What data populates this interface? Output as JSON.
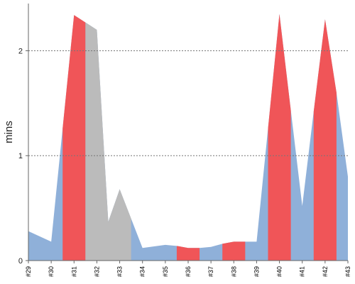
{
  "chart_data": {
    "type": "area",
    "ylabel": "mins",
    "xlabel": "",
    "ylim": [
      0,
      2.45
    ],
    "yticks": [
      "0",
      "1",
      "2"
    ],
    "ytick_values": [
      0,
      1,
      2
    ],
    "gridlines": [
      1,
      2
    ],
    "grid": "horizontal dashed",
    "categories": [
      "#29",
      "#30",
      "#31",
      "#32",
      "#33",
      "#34",
      "#35",
      "#36",
      "#37",
      "#38",
      "#39",
      "#40",
      "#41",
      "#42",
      "#43"
    ],
    "values": [
      0.28,
      0.18,
      2.34,
      2.2,
      0.68,
      0.12,
      0.15,
      0.12,
      0.13,
      0.18,
      0.18,
      2.35,
      0.52,
      2.3,
      0.8
    ],
    "extra_points": [
      {
        "x": 1.5,
        "y": 1.26
      },
      {
        "x": 2.5,
        "y": 2.27
      },
      {
        "x": 3.5,
        "y": 0.37
      },
      {
        "x": 6.5,
        "y": 0.14
      },
      {
        "x": 7.5,
        "y": 0.12
      },
      {
        "x": 8.5,
        "y": 0.16
      },
      {
        "x": 9.5,
        "y": 0.18
      },
      {
        "x": 10.5,
        "y": 1.26
      },
      {
        "x": 11.5,
        "y": 1.43
      },
      {
        "x": 12.5,
        "y": 1.42
      },
      {
        "x": 13.5,
        "y": 1.6
      }
    ],
    "highlight_bands": [
      {
        "from": 1.5,
        "to": 2.5,
        "color": "#f05558"
      },
      {
        "from": 2.5,
        "to": 4.5,
        "color": "#bbbbbb"
      },
      {
        "from": 6.5,
        "to": 7.5,
        "color": "#f05558"
      },
      {
        "from": 8.5,
        "to": 9.5,
        "color": "#f05558"
      },
      {
        "from": 10.5,
        "to": 11.5,
        "color": "#f05558"
      },
      {
        "from": 12.5,
        "to": 13.5,
        "color": "#f05558"
      }
    ],
    "colors": {
      "area": "#8fb0d9",
      "red": "#f05558",
      "gray": "#bbbbbb",
      "grid": "#777777",
      "axis": "#666666"
    }
  }
}
